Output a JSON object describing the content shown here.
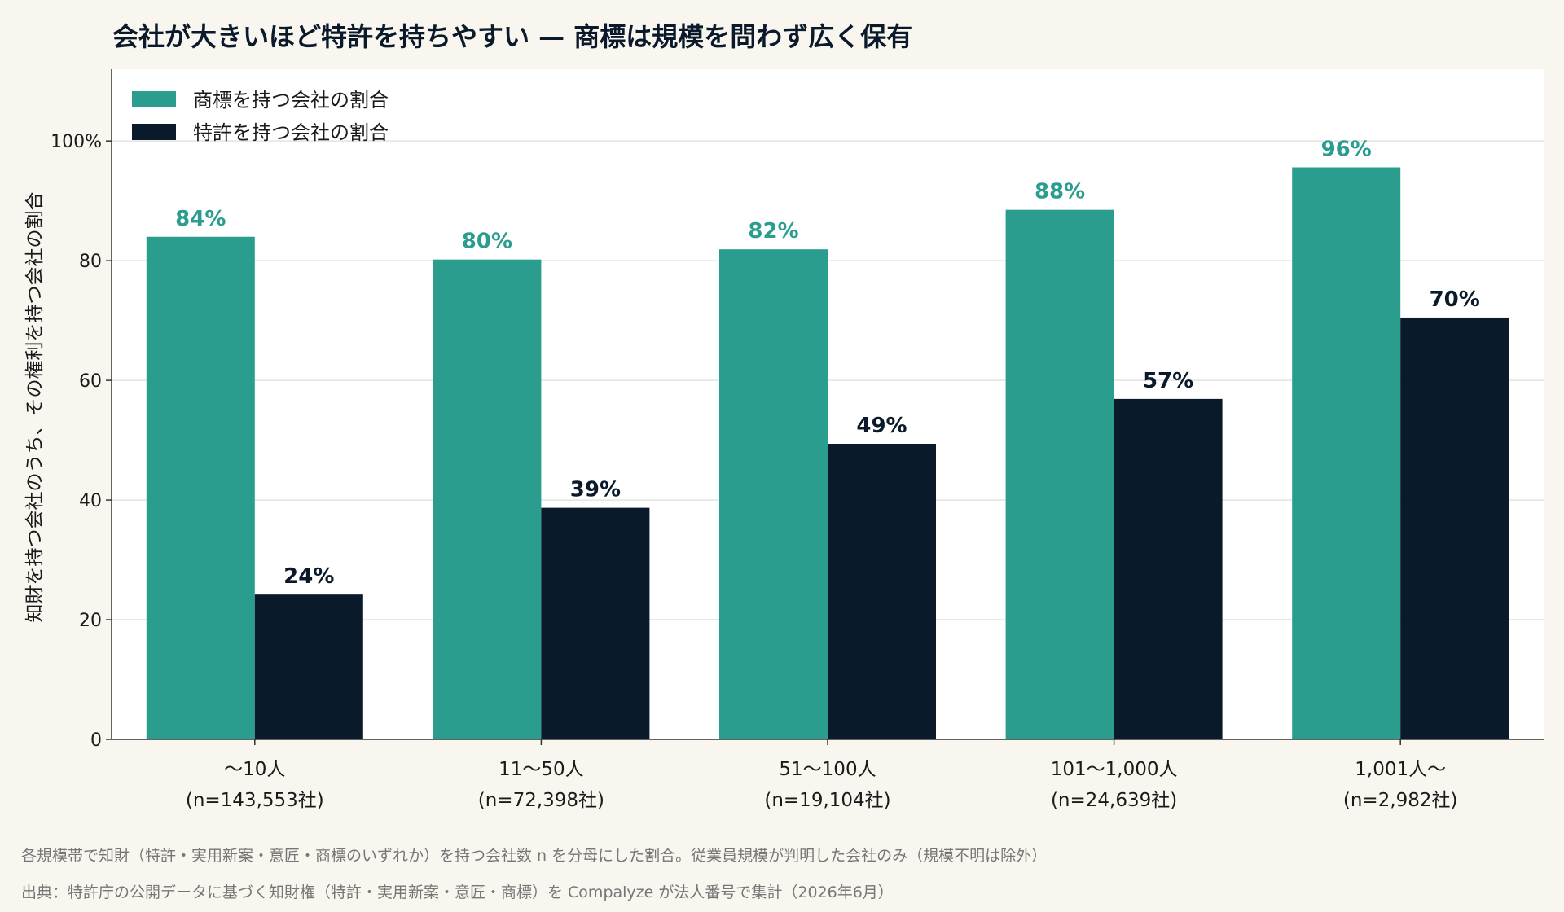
{
  "chart_data": {
    "type": "bar",
    "title": "会社が大きいほど特許を持ちやすい — 商標は規模を問わず広く保有",
    "ylabel": "知財を持つ会社のうち、その権利を持つ会社の割合",
    "xlabel": "",
    "ylim": [
      0,
      112
    ],
    "yticks": [
      0,
      20,
      40,
      60,
      80,
      100
    ],
    "ytick_labels": [
      "0",
      "20",
      "40",
      "60",
      "80",
      "100%"
    ],
    "grid": true,
    "legend_position": "top-left",
    "categories": [
      {
        "line1": "〜10人",
        "line2": "(n=143,553社)"
      },
      {
        "line1": "11〜50人",
        "line2": "(n=72,398社)"
      },
      {
        "line1": "51〜100人",
        "line2": "(n=19,104社)"
      },
      {
        "line1": "101〜1,000人",
        "line2": "(n=24,639社)"
      },
      {
        "line1": "1,001人〜",
        "line2": "(n=2,982社)"
      }
    ],
    "series": [
      {
        "name": "商標を持つ会社の割合",
        "color": "#2a9d8f",
        "values": [
          84,
          80.2,
          81.9,
          88.5,
          95.6
        ],
        "labels": [
          "84%",
          "80%",
          "82%",
          "88%",
          "96%"
        ]
      },
      {
        "name": "特許を持つ会社の割合",
        "color": "#0b1a2b",
        "values": [
          24.2,
          38.7,
          49.4,
          56.9,
          70.5
        ],
        "labels": [
          "24%",
          "39%",
          "49%",
          "57%",
          "70%"
        ]
      }
    ],
    "notes": [
      "各規模帯で知財（特許・実用新案・意匠・商標のいずれか）を持つ会社数 n を分母にした割合。従業員規模が判明した会社のみ（規模不明は除外）",
      "出典：特許庁の公開データに基づく知財権（特許・実用新案・意匠・商標）を Compalyze が法人番号で集計（2026年6月）"
    ]
  }
}
